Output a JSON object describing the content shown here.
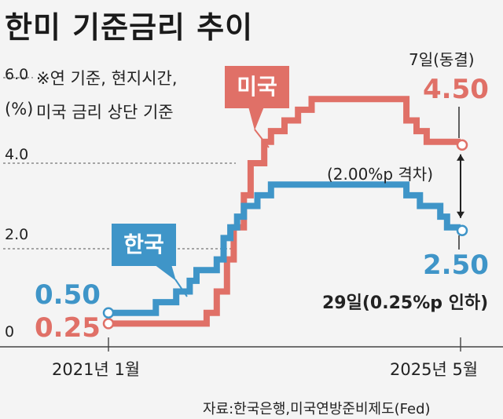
{
  "title": "한미 기준금리 추이",
  "note_line1": "※연 기준, 현지시간,",
  "note_line2": "미국 금리 상단 기준",
  "unit": "(%)",
  "source": "자료:한국은행,미국연방준비제도(Fed)",
  "colors": {
    "us": "#e07067",
    "korea": "#3f95c8",
    "arrow": "#222222",
    "grid": "#555555"
  },
  "chart_data": {
    "type": "line",
    "title": "한미 기준금리 추이",
    "ylabel": "(%)",
    "ylim": [
      0,
      6.0
    ],
    "yticks": [
      {
        "value": 0,
        "label": "0"
      },
      {
        "value": 2.0,
        "label": "2.0"
      },
      {
        "value": 4.0,
        "label": "4.0"
      },
      {
        "value": 6.0,
        "label": "6.0"
      }
    ],
    "x_labels": {
      "start": "2021년 1월",
      "end": "2025년 5월"
    },
    "x_range_months": [
      0,
      52
    ],
    "series": [
      {
        "name": "미국",
        "tag": "미국",
        "start_label": "0.25",
        "end_label": "4.50",
        "end_note": "7일(동결)",
        "points": [
          [
            0,
            0.25
          ],
          [
            14.5,
            0.25
          ],
          [
            14.5,
            0.5
          ],
          [
            16,
            0.5
          ],
          [
            16,
            1.0
          ],
          [
            17.5,
            1.0
          ],
          [
            17.5,
            1.75
          ],
          [
            18.5,
            1.75
          ],
          [
            18.5,
            2.5
          ],
          [
            20,
            2.5
          ],
          [
            20,
            3.25
          ],
          [
            21,
            3.25
          ],
          [
            21,
            4.0
          ],
          [
            23,
            4.0
          ],
          [
            23,
            4.5
          ],
          [
            24,
            4.5
          ],
          [
            24,
            4.75
          ],
          [
            26,
            4.75
          ],
          [
            26,
            5.0
          ],
          [
            28,
            5.0
          ],
          [
            28,
            5.25
          ],
          [
            30,
            5.25
          ],
          [
            30,
            5.5
          ],
          [
            44,
            5.5
          ],
          [
            44,
            5.0
          ],
          [
            45.5,
            5.0
          ],
          [
            45.5,
            4.75
          ],
          [
            47,
            4.75
          ],
          [
            47,
            4.5
          ],
          [
            52,
            4.5
          ]
        ]
      },
      {
        "name": "한국",
        "tag": "한국",
        "start_label": "0.50",
        "end_label": "2.50",
        "end_note": "29일(0.25%p 인하)",
        "points": [
          [
            0,
            0.5
          ],
          [
            7,
            0.5
          ],
          [
            7,
            0.75
          ],
          [
            10,
            0.75
          ],
          [
            10,
            1.0
          ],
          [
            12,
            1.0
          ],
          [
            12,
            1.25
          ],
          [
            13,
            1.25
          ],
          [
            13,
            1.5
          ],
          [
            16,
            1.5
          ],
          [
            16,
            1.75
          ],
          [
            17,
            1.75
          ],
          [
            17,
            2.25
          ],
          [
            18,
            2.25
          ],
          [
            18,
            2.5
          ],
          [
            19,
            2.5
          ],
          [
            19,
            2.75
          ],
          [
            20,
            2.75
          ],
          [
            20,
            3.0
          ],
          [
            22,
            3.0
          ],
          [
            22,
            3.25
          ],
          [
            24,
            3.25
          ],
          [
            24,
            3.5
          ],
          [
            44,
            3.5
          ],
          [
            44,
            3.25
          ],
          [
            46,
            3.25
          ],
          [
            46,
            3.0
          ],
          [
            49,
            3.0
          ],
          [
            49,
            2.75
          ],
          [
            50,
            2.75
          ],
          [
            50,
            2.5
          ],
          [
            52,
            2.5
          ]
        ]
      }
    ],
    "annotations": [
      {
        "text": "(2.00%p 격차)",
        "x": 52,
        "from": 2.5,
        "to": 4.5
      }
    ]
  }
}
